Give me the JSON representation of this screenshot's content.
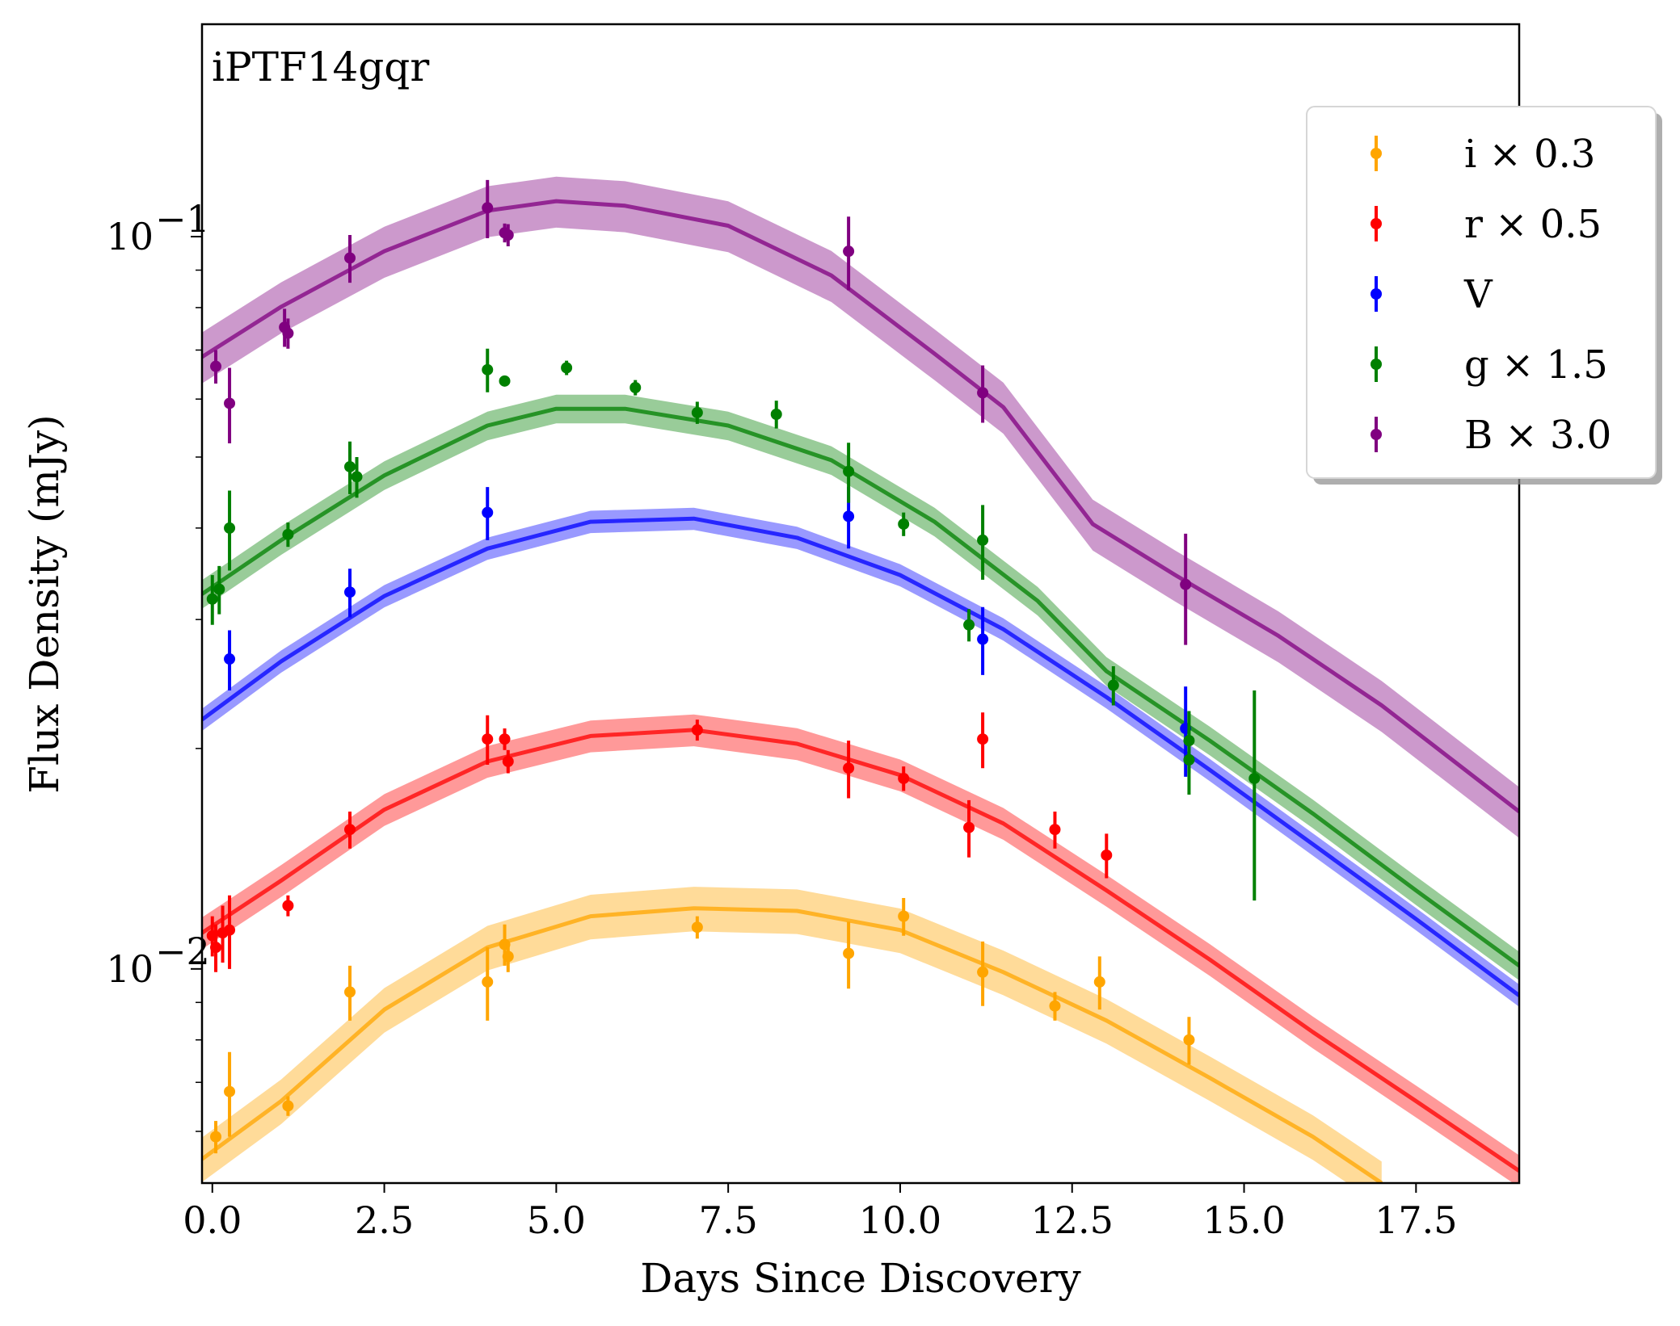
{
  "chart_data": {
    "type": "scatter",
    "annotation": "iPTF14gqr",
    "xlabel": "Days Since Discovery",
    "ylabel": "Flux Density (mJy)",
    "xlim": [
      -0.15,
      19.0
    ],
    "ylim": [
      0.0051,
      0.195
    ],
    "yscale": "log",
    "x_ticks": [
      0.0,
      2.5,
      5.0,
      7.5,
      10.0,
      12.5,
      15.0,
      17.5
    ],
    "x_tick_labels": [
      "0.0",
      "2.5",
      "5.0",
      "7.5",
      "10.0",
      "12.5",
      "15.0",
      "17.5"
    ],
    "y_major_ticks": [
      0.01,
      0.1
    ],
    "y_tick_labels": [
      "10",
      "10"
    ],
    "y_tick_exponents": [
      "−2",
      "−1"
    ],
    "legend_position": "upper-right",
    "series": [
      {
        "name": "i × 0.3",
        "color": "#ffa500",
        "points": [
          [
            0.05,
            0.0059,
            0.0003
          ],
          [
            0.25,
            0.0068,
            0.0009
          ],
          [
            1.1,
            0.0065,
            0.0002
          ],
          [
            2.0,
            0.0093,
            0.0008
          ],
          [
            4.0,
            0.0096,
            0.0011
          ],
          [
            4.25,
            0.0108,
            0.0007
          ],
          [
            4.3,
            0.0104,
            0.0005
          ],
          [
            7.05,
            0.0114,
            0.0004
          ],
          [
            9.25,
            0.0105,
            0.0011
          ],
          [
            10.05,
            0.0118,
            0.0007
          ],
          [
            11.2,
            0.0099,
            0.001
          ],
          [
            12.25,
            0.0089,
            0.0004
          ],
          [
            12.9,
            0.0096,
            0.0008
          ],
          [
            14.2,
            0.008,
            0.0006
          ]
        ],
        "fit": [
          [
            -0.15,
            0.0055
          ],
          [
            1.0,
            0.0066
          ],
          [
            2.5,
            0.0088
          ],
          [
            4.0,
            0.0107
          ],
          [
            5.5,
            0.0118
          ],
          [
            7.0,
            0.0121
          ],
          [
            8.5,
            0.012
          ],
          [
            10.0,
            0.0113
          ],
          [
            11.5,
            0.0099
          ],
          [
            13.0,
            0.0085
          ],
          [
            14.5,
            0.0071
          ],
          [
            16.0,
            0.0059
          ],
          [
            17.0,
            0.0051
          ]
        ],
        "fit_band": 0.07
      },
      {
        "name": "r × 0.5",
        "color": "#ff0000",
        "points": [
          [
            0.0,
            0.0111,
            0.0007
          ],
          [
            0.05,
            0.0107,
            0.0008
          ],
          [
            0.15,
            0.0112,
            0.001
          ],
          [
            0.25,
            0.0113,
            0.0013
          ],
          [
            1.1,
            0.0122,
            0.0004
          ],
          [
            2.0,
            0.0155,
            0.0009
          ],
          [
            4.0,
            0.0206,
            0.0016
          ],
          [
            4.25,
            0.0206,
            0.0007
          ],
          [
            4.3,
            0.0192,
            0.0007
          ],
          [
            7.05,
            0.0212,
            0.0007
          ],
          [
            9.25,
            0.0188,
            0.0017
          ],
          [
            10.05,
            0.0182,
            0.0007
          ],
          [
            11.0,
            0.0156,
            0.0014
          ],
          [
            11.2,
            0.0206,
            0.0018
          ],
          [
            12.25,
            0.0155,
            0.0009
          ],
          [
            13.0,
            0.0143,
            0.001
          ]
        ],
        "fit": [
          [
            -0.15,
            0.0112
          ],
          [
            1.0,
            0.0132
          ],
          [
            2.5,
            0.0165
          ],
          [
            4.0,
            0.0192
          ],
          [
            5.5,
            0.0208
          ],
          [
            7.0,
            0.0212
          ],
          [
            8.5,
            0.0203
          ],
          [
            10.0,
            0.0184
          ],
          [
            11.5,
            0.0158
          ],
          [
            13.0,
            0.0128
          ],
          [
            14.5,
            0.0103
          ],
          [
            16.0,
            0.0082
          ],
          [
            17.5,
            0.0066
          ],
          [
            19.0,
            0.0053
          ]
        ],
        "fit_band": 0.05
      },
      {
        "name": "V",
        "color": "#0000ff",
        "points": [
          [
            0.25,
            0.0265,
            0.0025
          ],
          [
            2.0,
            0.0327,
            0.0025
          ],
          [
            4.0,
            0.042,
            0.0035
          ],
          [
            9.25,
            0.0415,
            0.004
          ],
          [
            11.2,
            0.0282,
            0.003
          ],
          [
            14.15,
            0.0213,
            0.003
          ]
        ],
        "fit": [
          [
            -0.15,
            0.0219
          ],
          [
            1.0,
            0.0263
          ],
          [
            2.5,
            0.0323
          ],
          [
            4.0,
            0.0375
          ],
          [
            5.5,
            0.0408
          ],
          [
            7.0,
            0.0412
          ],
          [
            8.5,
            0.0388
          ],
          [
            10.0,
            0.0345
          ],
          [
            11.5,
            0.0291
          ],
          [
            13.0,
            0.0235
          ],
          [
            14.5,
            0.0187
          ],
          [
            16.0,
            0.0148
          ],
          [
            17.5,
            0.0117
          ],
          [
            19.0,
            0.0092
          ]
        ],
        "fit_band": 0.035
      },
      {
        "name": "g × 1.5",
        "color": "#008000",
        "points": [
          [
            0.0,
            0.032,
            0.0025
          ],
          [
            0.1,
            0.033,
            0.0025
          ],
          [
            0.25,
            0.04,
            0.005
          ],
          [
            1.1,
            0.0392,
            0.0015
          ],
          [
            2.0,
            0.0485,
            0.004
          ],
          [
            2.1,
            0.047,
            0.003
          ],
          [
            4.0,
            0.0658,
            0.0045
          ],
          [
            4.25,
            0.0635,
            0.001
          ],
          [
            5.15,
            0.0662,
            0.0015
          ],
          [
            6.15,
            0.0622,
            0.0015
          ],
          [
            7.05,
            0.0575,
            0.002
          ],
          [
            8.2,
            0.0572,
            0.0025
          ],
          [
            9.25,
            0.0478,
            0.0045
          ],
          [
            10.05,
            0.0405,
            0.0015
          ],
          [
            11.0,
            0.0295,
            0.0015
          ],
          [
            11.2,
            0.0385,
            0.0045
          ],
          [
            13.1,
            0.0244,
            0.0015
          ],
          [
            14.2,
            0.0205,
            0.002
          ],
          [
            14.2,
            0.0193,
            0.002
          ],
          [
            15.15,
            0.0182,
            0.0058
          ]
        ],
        "fit": [
          [
            -0.15,
            0.0325
          ],
          [
            1.0,
            0.0385
          ],
          [
            2.5,
            0.0472
          ],
          [
            4.0,
            0.0552
          ],
          [
            5.0,
            0.0582
          ],
          [
            6.0,
            0.0582
          ],
          [
            7.5,
            0.0552
          ],
          [
            9.0,
            0.0495
          ],
          [
            10.5,
            0.0408
          ],
          [
            12.0,
            0.0318
          ],
          [
            13.0,
            0.0255
          ],
          [
            14.5,
            0.0205
          ],
          [
            16.0,
            0.0163
          ],
          [
            17.5,
            0.0128
          ],
          [
            19.0,
            0.0101
          ]
        ],
        "fit_band": 0.045
      },
      {
        "name": "B × 3.0",
        "color": "#800080",
        "points": [
          [
            0.05,
            0.0665,
            0.0035
          ],
          [
            0.25,
            0.0592,
            0.007
          ],
          [
            1.05,
            0.0752,
            0.0045
          ],
          [
            1.1,
            0.0738,
            0.0035
          ],
          [
            2.0,
            0.0935,
            0.007
          ],
          [
            4.0,
            0.1095,
            0.01
          ],
          [
            4.25,
            0.1012,
            0.003
          ],
          [
            4.3,
            0.1005,
            0.0035
          ],
          [
            9.25,
            0.0955,
            0.011
          ],
          [
            11.2,
            0.0612,
            0.0055
          ],
          [
            14.15,
            0.0335,
            0.0058
          ]
        ],
        "fit": [
          [
            -0.15,
            0.0685
          ],
          [
            1.0,
            0.0802
          ],
          [
            2.5,
            0.0955
          ],
          [
            4.0,
            0.1085
          ],
          [
            5.0,
            0.1118
          ],
          [
            6.0,
            0.1102
          ],
          [
            7.5,
            0.1035
          ],
          [
            9.0,
            0.0885
          ],
          [
            10.5,
            0.0692
          ],
          [
            11.5,
            0.0585
          ],
          [
            12.8,
            0.0405
          ],
          [
            14.0,
            0.0345
          ],
          [
            15.5,
            0.0285
          ],
          [
            17.0,
            0.0229
          ],
          [
            19.0,
            0.0164
          ]
        ],
        "fit_band": 0.08
      }
    ]
  }
}
